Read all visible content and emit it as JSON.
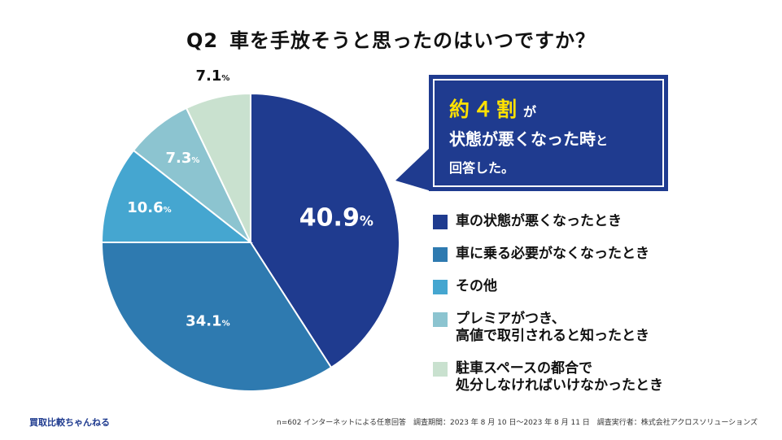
{
  "title": {
    "q": "Q2",
    "text": "車を手放そうと思ったのはいつですか？"
  },
  "callout": {
    "highlight": "約４割",
    "line1_suffix": "が",
    "line2": "状態が悪くなった時",
    "line2_suffix": "と",
    "line3": "回答した。"
  },
  "chart_data": {
    "type": "pie",
    "title": "車を手放そうと思ったのはいつですか？",
    "unit": "%",
    "slices": [
      {
        "label": "車の状態が悪くなったとき",
        "value": 40.9,
        "display": "40.9",
        "color": "#1f3b8f"
      },
      {
        "label": "車に乗る必要がなくなったとき",
        "value": 34.1,
        "display": "34.1",
        "color": "#2e7ab0"
      },
      {
        "label": "その他",
        "value": 10.6,
        "display": "10.6",
        "color": "#45a6d0"
      },
      {
        "label": "プレミアがつき、高値で取引されると知ったとき",
        "value": 7.3,
        "display": "7.3",
        "color": "#8cc4d0"
      },
      {
        "label": "駐車スペースの都合で処分しなければいけなかったとき",
        "value": 7.1,
        "display": "7.1",
        "color": "#c9e1cf"
      }
    ]
  },
  "legend": [
    {
      "lines": [
        "車の状態が悪くなったとき"
      ],
      "color": "#1f3b8f"
    },
    {
      "lines": [
        "車に乗る必要がなくなったとき"
      ],
      "color": "#2e7ab0"
    },
    {
      "lines": [
        "その他"
      ],
      "color": "#45a6d0"
    },
    {
      "lines": [
        "プレミアがつき、",
        "高値で取引されると知ったとき"
      ],
      "color": "#8cc4d0"
    },
    {
      "lines": [
        "駐車スペースの都合で",
        "処分しなければいけなかったとき"
      ],
      "color": "#c9e1cf"
    }
  ],
  "footer": {
    "brand": "買取比較ちゃんねる",
    "note": "n=602 インターネットによる任意回答　調査期間：2023 年 8 月 10 日〜2023 年 8 月 11 日　調査実行者：株式会社アクロスソリューションズ"
  }
}
